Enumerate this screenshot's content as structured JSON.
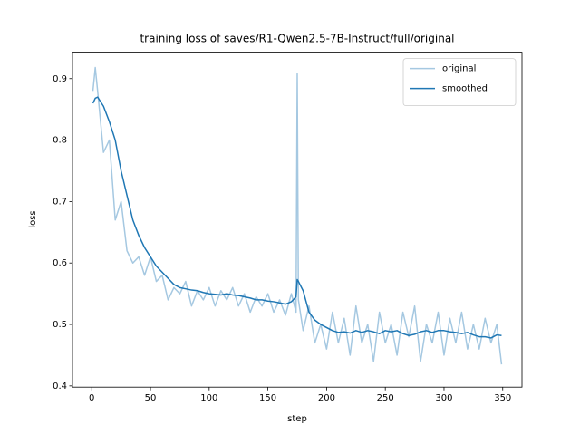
{
  "chart_data": {
    "type": "line",
    "title": "training loss of saves/R1-Qwen2.5-7B-Instruct/full/original",
    "xlabel": "step",
    "ylabel": "loss",
    "x": [
      1,
      3,
      5,
      10,
      15,
      20,
      25,
      30,
      35,
      40,
      45,
      50,
      55,
      60,
      65,
      70,
      75,
      80,
      85,
      90,
      95,
      100,
      105,
      110,
      115,
      120,
      125,
      130,
      135,
      140,
      145,
      150,
      155,
      160,
      165,
      170,
      174,
      175,
      176,
      180,
      185,
      190,
      195,
      200,
      205,
      210,
      215,
      220,
      225,
      230,
      235,
      240,
      245,
      250,
      255,
      260,
      265,
      270,
      275,
      280,
      285,
      290,
      295,
      300,
      305,
      310,
      315,
      320,
      325,
      330,
      335,
      340,
      345,
      349
    ],
    "series": [
      {
        "name": "original",
        "color": "#a5c8e1",
        "values": [
          0.88,
          0.918,
          0.88,
          0.78,
          0.8,
          0.67,
          0.7,
          0.62,
          0.6,
          0.61,
          0.58,
          0.61,
          0.57,
          0.58,
          0.54,
          0.56,
          0.55,
          0.57,
          0.53,
          0.555,
          0.54,
          0.56,
          0.53,
          0.555,
          0.54,
          0.56,
          0.53,
          0.55,
          0.52,
          0.545,
          0.53,
          0.55,
          0.52,
          0.54,
          0.515,
          0.55,
          0.52,
          0.908,
          0.54,
          0.49,
          0.53,
          0.47,
          0.5,
          0.46,
          0.52,
          0.47,
          0.51,
          0.45,
          0.53,
          0.47,
          0.5,
          0.44,
          0.52,
          0.47,
          0.5,
          0.45,
          0.52,
          0.48,
          0.53,
          0.44,
          0.5,
          0.47,
          0.52,
          0.45,
          0.51,
          0.47,
          0.52,
          0.46,
          0.5,
          0.46,
          0.51,
          0.47,
          0.5,
          0.435
        ]
      },
      {
        "name": "smoothed",
        "color": "#1f77b4",
        "values": [
          0.86,
          0.868,
          0.87,
          0.855,
          0.83,
          0.8,
          0.75,
          0.71,
          0.67,
          0.645,
          0.625,
          0.61,
          0.595,
          0.585,
          0.575,
          0.565,
          0.56,
          0.558,
          0.556,
          0.555,
          0.552,
          0.55,
          0.549,
          0.548,
          0.55,
          0.548,
          0.547,
          0.545,
          0.543,
          0.54,
          0.54,
          0.538,
          0.537,
          0.535,
          0.533,
          0.537,
          0.545,
          0.573,
          0.57,
          0.555,
          0.52,
          0.507,
          0.5,
          0.495,
          0.49,
          0.487,
          0.488,
          0.486,
          0.49,
          0.487,
          0.49,
          0.488,
          0.485,
          0.49,
          0.488,
          0.49,
          0.485,
          0.482,
          0.484,
          0.488,
          0.49,
          0.487,
          0.49,
          0.49,
          0.488,
          0.487,
          0.485,
          0.487,
          0.483,
          0.48,
          0.48,
          0.478,
          0.483,
          0.482
        ]
      }
    ],
    "xlim": [
      -16.4,
      366.4
    ],
    "xticks": [
      0,
      50,
      100,
      150,
      200,
      250,
      300,
      350
    ],
    "ylim": [
      0.398,
      0.943
    ],
    "yticks": [
      0.4,
      0.5,
      0.6,
      0.7,
      0.8,
      0.9
    ],
    "legend": "upper right"
  }
}
